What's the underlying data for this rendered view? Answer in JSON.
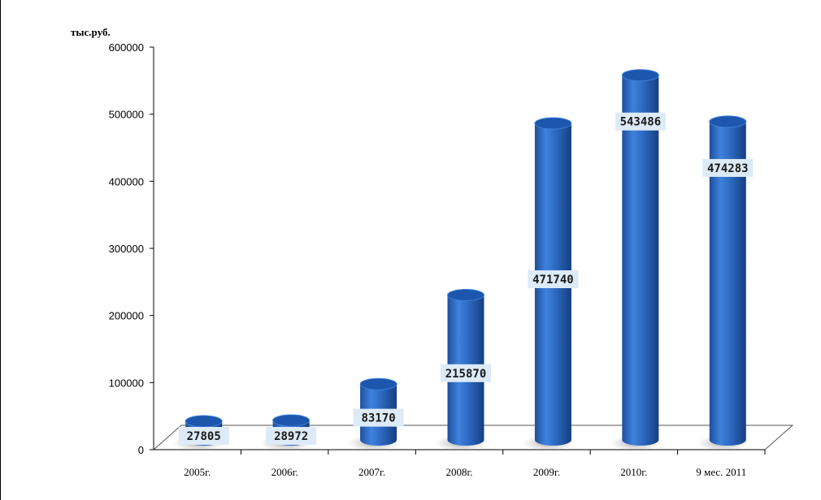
{
  "chart_data": {
    "type": "bar",
    "unit_label": "тыс.руб.",
    "categories": [
      "2005г.",
      "2006г.",
      "2007г.",
      "2008г.",
      "2009г.",
      "2010г.",
      "9 мес. 2011"
    ],
    "values": [
      27805,
      28972,
      83170,
      215870,
      471740,
      543486,
      474283
    ],
    "value_labels": [
      "27805",
      "28972",
      "83170",
      "215870",
      "471740",
      "543486",
      "474283"
    ],
    "ylim": [
      0,
      600000
    ],
    "yticks": [
      "0",
      "100000",
      "200000",
      "300000",
      "400000",
      "500000",
      "600000"
    ],
    "bar_color": "#2e6bc4",
    "grid": false,
    "legend": "none"
  }
}
